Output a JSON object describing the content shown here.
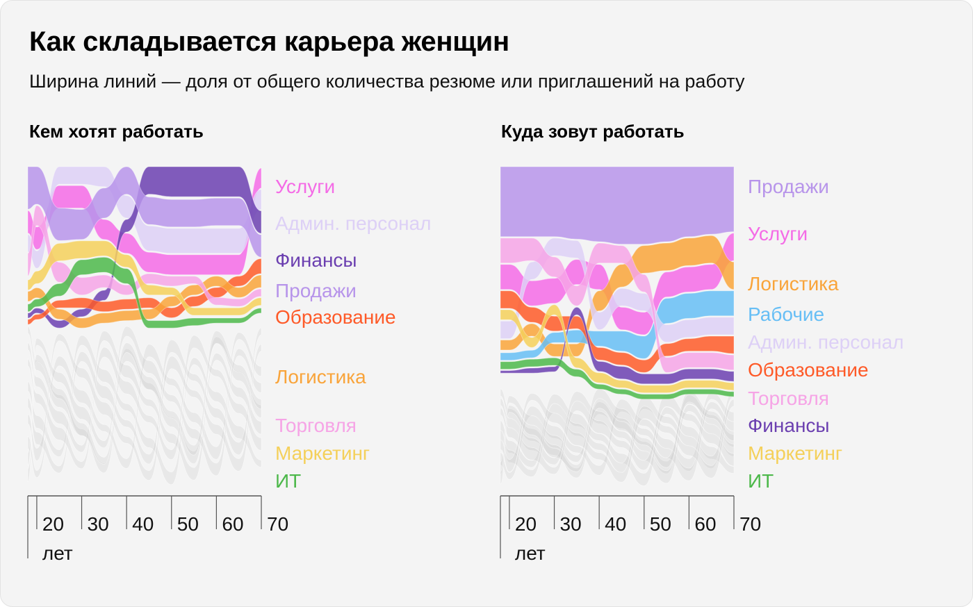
{
  "header": {
    "title": "Как складывается карьера женщин",
    "subtitle": "Ширина линий — доля от общего количества резюме или приглашений на работу"
  },
  "chart_data": [
    {
      "type": "area",
      "title": "Кем хотят работать",
      "xlabel": "лет",
      "x_ticks": [
        "20",
        "30",
        "40",
        "50",
        "60",
        "70"
      ],
      "x_first_tick_suffix": "лет",
      "x": [
        18,
        20,
        25,
        30,
        35,
        40,
        45,
        50,
        55,
        60,
        65,
        70
      ],
      "series": [
        {
          "name": "Услуги",
          "color": "#f46be6",
          "rank": [
            1,
            2,
            1,
            1,
            2,
            3,
            4,
            4,
            4,
            4,
            4,
            1
          ],
          "share": [
            9,
            9,
            9,
            9,
            8,
            8,
            8,
            8,
            8,
            8,
            8,
            8
          ]
        },
        {
          "name": "Админ. персонал",
          "color": "#ddd0f6",
          "rank": [
            2,
            3,
            0,
            0,
            0,
            1,
            3,
            3,
            3,
            3,
            3,
            2
          ],
          "share": [
            7,
            7,
            7,
            7,
            8,
            9,
            10,
            10,
            10,
            10,
            10,
            8
          ]
        },
        {
          "name": "Финансы",
          "color": "#6b3fb0",
          "rank": [
            10,
            10,
            10,
            9,
            8,
            2,
            0,
            0,
            0,
            0,
            0,
            3
          ],
          "share": [
            2,
            2,
            3,
            3,
            4,
            5,
            11,
            12,
            12,
            12,
            12,
            9
          ]
        },
        {
          "name": "Продажи",
          "color": "#b794ea",
          "rank": [
            0,
            0,
            1,
            2,
            1,
            0,
            2,
            2,
            2,
            1,
            1,
            4
          ],
          "share": [
            17,
            15,
            13,
            12,
            12,
            11,
            11,
            11,
            11,
            11,
            11,
            9
          ]
        },
        {
          "name": "Образование",
          "color": "#fe5a28",
          "rank": [
            11,
            11,
            8,
            8,
            9,
            9,
            8,
            8,
            7,
            6,
            5,
            5
          ],
          "share": [
            2,
            2,
            3,
            4,
            4,
            4,
            4,
            4,
            4,
            4,
            4,
            6
          ]
        },
        {
          "name": "Логистика",
          "color": "#f9a43a",
          "rank": [
            7,
            8,
            9,
            10,
            10,
            10,
            9,
            7,
            6,
            5,
            6,
            6
          ],
          "share": [
            4,
            4,
            4,
            4,
            4,
            4,
            4,
            4,
            4,
            4,
            4,
            5
          ]
        },
        {
          "name": "Торговля",
          "color": "#f6a4e6",
          "rank": [
            3,
            1,
            4,
            6,
            6,
            6,
            5,
            5,
            5,
            6,
            7,
            7
          ],
          "share": [
            9,
            8,
            8,
            7,
            5,
            4,
            4,
            4,
            3,
            3,
            3,
            3
          ]
        },
        {
          "name": "Маркетинг",
          "color": "#f4d05a",
          "rank": [
            6,
            5,
            3,
            3,
            3,
            4,
            6,
            6,
            8,
            8,
            8,
            8
          ],
          "share": [
            4,
            5,
            7,
            7,
            6,
            5,
            4,
            3,
            3,
            3,
            3,
            3
          ]
        },
        {
          "name": "ИТ",
          "color": "#4cb84a",
          "rank": [
            9,
            9,
            5,
            4,
            4,
            5,
            10,
            10,
            10,
            10,
            10,
            10
          ],
          "share": [
            3,
            3,
            5,
            6,
            6,
            6,
            3,
            3,
            3,
            2,
            2,
            2
          ]
        }
      ]
    },
    {
      "type": "area",
      "title": "Куда зовут работать",
      "xlabel": "лет",
      "x_ticks": [
        "20",
        "30",
        "40",
        "50",
        "60",
        "70"
      ],
      "x_first_tick_suffix": "лет",
      "x": [
        18,
        20,
        25,
        30,
        35,
        40,
        45,
        50,
        55,
        60,
        65,
        70
      ],
      "series": [
        {
          "name": "Продажи",
          "color": "#b794ea",
          "rank": [
            0,
            0,
            0,
            0,
            0,
            0,
            0,
            0,
            0,
            0,
            0,
            0
          ],
          "share": [
            28,
            28,
            28,
            28,
            29,
            30,
            31,
            31,
            30,
            28,
            27,
            26
          ]
        },
        {
          "name": "Услуги",
          "color": "#f46be6",
          "rank": [
            2,
            2,
            3,
            3,
            2,
            2,
            4,
            4,
            2,
            2,
            2,
            1
          ],
          "share": [
            10,
            10,
            10,
            10,
            10,
            10,
            9,
            9,
            10,
            10,
            10,
            11
          ]
        },
        {
          "name": "Логистика",
          "color": "#f9a43a",
          "rank": [
            6,
            6,
            5,
            7,
            7,
            3,
            2,
            1,
            1,
            1,
            1,
            2
          ],
          "share": [
            4,
            4,
            5,
            5,
            5,
            8,
            9,
            11,
            11,
            11,
            11,
            11
          ]
        },
        {
          "name": "Рабочие",
          "color": "#66bef5",
          "rank": [
            8,
            8,
            8,
            6,
            6,
            5,
            5,
            5,
            3,
            3,
            3,
            3
          ],
          "share": [
            3,
            3,
            3,
            4,
            5,
            6,
            8,
            9,
            10,
            10,
            10,
            10
          ]
        },
        {
          "name": "Админ. персонал",
          "color": "#ddd0f6",
          "rank": [
            5,
            5,
            2,
            1,
            1,
            4,
            3,
            3,
            4,
            4,
            4,
            4
          ],
          "share": [
            7,
            7,
            7,
            7,
            7,
            7,
            7,
            7,
            7,
            7,
            7,
            7
          ]
        },
        {
          "name": "Образование",
          "color": "#fe5a28",
          "rank": [
            3,
            3,
            4,
            5,
            5,
            6,
            6,
            6,
            5,
            5,
            5,
            5
          ],
          "share": [
            7,
            7,
            6,
            6,
            5,
            5,
            5,
            5,
            5,
            5,
            6,
            7
          ]
        },
        {
          "name": "Торговля",
          "color": "#f6a4e6",
          "rank": [
            1,
            1,
            1,
            2,
            3,
            1,
            1,
            2,
            6,
            6,
            6,
            6
          ],
          "share": [
            10,
            10,
            9,
            8,
            8,
            8,
            7,
            7,
            6,
            6,
            6,
            6
          ]
        },
        {
          "name": "Финансы",
          "color": "#6b3fb0",
          "rank": [
            10,
            10,
            10,
            9,
            4,
            7,
            7,
            7,
            7,
            7,
            7,
            7
          ],
          "share": [
            1,
            1,
            2,
            2,
            3,
            4,
            5,
            4,
            4,
            4,
            4,
            4
          ]
        },
        {
          "name": "Маркетинг",
          "color": "#f4d05a",
          "rank": [
            4,
            4,
            6,
            4,
            8,
            8,
            8,
            8,
            8,
            8,
            8,
            8
          ],
          "share": [
            4,
            4,
            4,
            4,
            4,
            4,
            3,
            3,
            3,
            3,
            3,
            3
          ]
        },
        {
          "name": "ИТ",
          "color": "#4cb84a",
          "rank": [
            9,
            9,
            9,
            8,
            9,
            9,
            9,
            9,
            9,
            9,
            9,
            9
          ],
          "share": [
            3,
            3,
            3,
            3,
            3,
            2,
            2,
            2,
            2,
            2,
            2,
            2
          ]
        }
      ]
    }
  ]
}
